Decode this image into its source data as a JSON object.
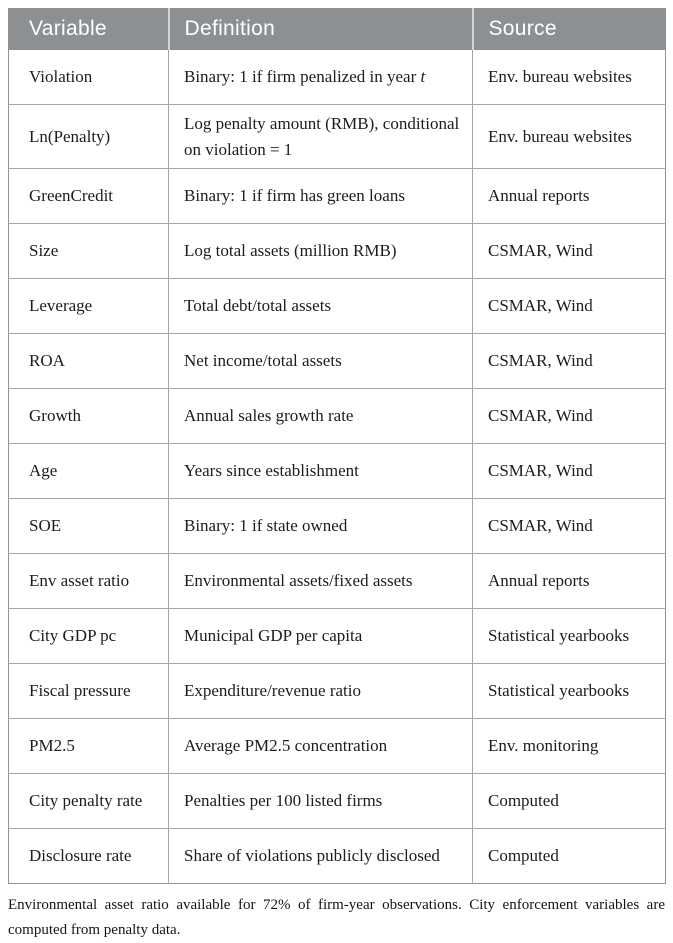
{
  "table": {
    "columns": [
      {
        "key": "variable",
        "label": "Variable"
      },
      {
        "key": "definition",
        "label": "Definition"
      },
      {
        "key": "source",
        "label": "Source"
      }
    ],
    "rows": [
      {
        "variable": "Violation",
        "definition": [
          {
            "text": "Binary: 1 if firm penalized in year ",
            "italic": false
          },
          {
            "text": "t",
            "italic": true
          }
        ],
        "source": "Env. bureau websites"
      },
      {
        "variable": "Ln(Penalty)",
        "definition": "Log penalty amount (RMB), conditional on violation = 1",
        "source": "Env. bureau websites"
      },
      {
        "variable": "GreenCredit",
        "definition": "Binary: 1 if firm has green loans",
        "source": "Annual reports"
      },
      {
        "variable": "Size",
        "definition": "Log total assets (million RMB)",
        "source": "CSMAR, Wind"
      },
      {
        "variable": "Leverage",
        "definition": "Total debt/total assets",
        "source": "CSMAR, Wind"
      },
      {
        "variable": "ROA",
        "definition": "Net income/total assets",
        "source": "CSMAR, Wind"
      },
      {
        "variable": "Growth",
        "definition": "Annual sales growth rate",
        "source": "CSMAR, Wind"
      },
      {
        "variable": "Age",
        "definition": "Years since establishment",
        "source": "CSMAR, Wind"
      },
      {
        "variable": "SOE",
        "definition": "Binary: 1 if state owned",
        "source": "CSMAR, Wind"
      },
      {
        "variable": "Env asset ratio",
        "definition": "Environmental assets/fixed assets",
        "source": "Annual reports"
      },
      {
        "variable": "City GDP pc",
        "definition": "Municipal GDP per capita",
        "source": "Statistical yearbooks"
      },
      {
        "variable": "Fiscal pressure",
        "definition": "Expenditure/revenue ratio",
        "source": "Statistical yearbooks"
      },
      {
        "variable": "PM2.5",
        "definition": "Average PM2.5 concentration",
        "source": "Env. monitoring"
      },
      {
        "variable": "City penalty rate",
        "definition": "Penalties per 100 listed firms",
        "source": "Computed"
      },
      {
        "variable": "Disclosure rate",
        "definition": "Share of violations publicly disclosed",
        "source": "Computed"
      }
    ]
  },
  "footnote": "Environmental asset ratio available for 72% of firm-year observations. City enforcement variables are computed from penalty data.",
  "colors": {
    "header_bg": "#8c9093",
    "header_text": "#ffffff",
    "outer_border": "#8f9396",
    "inner_border": "#a3a6a8",
    "body_text": "#1c1c1c"
  }
}
